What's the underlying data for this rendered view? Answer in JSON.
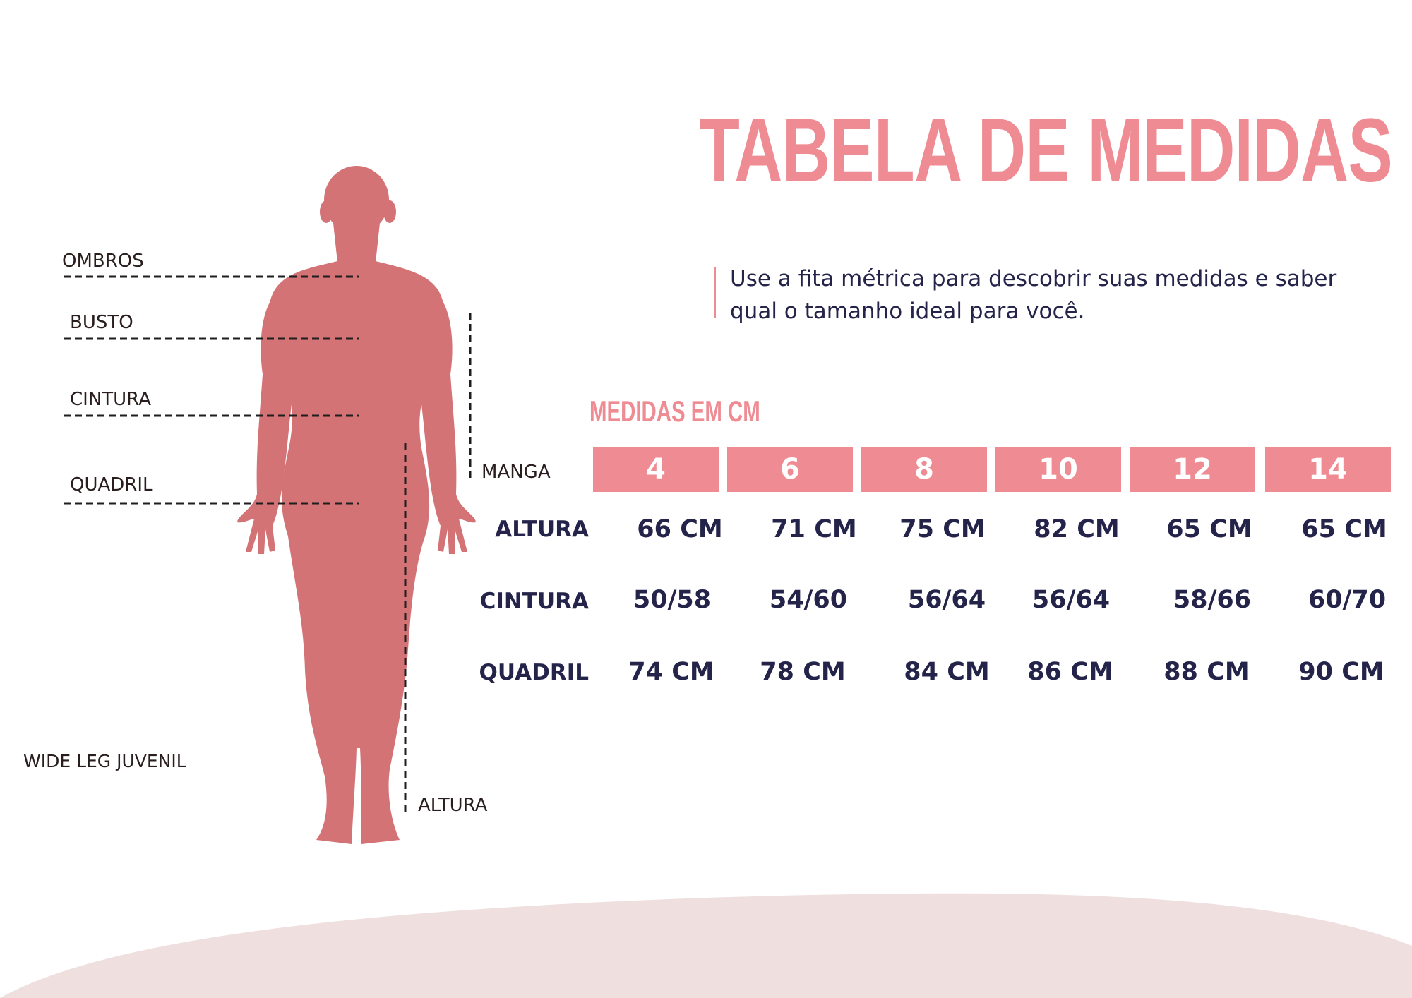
{
  "title": "TABELA DE MEDIDAS",
  "intro": "Use a fita métrica para descobrir suas medidas e saber qual o tamanho ideal para você.",
  "units_label": "MEDIDAS EM CM",
  "figure": {
    "labels": {
      "ombros": "OMBROS",
      "busto": "BUSTO",
      "cintura": "CINTURA",
      "quadril": "QUADRIL",
      "manga": "MANGA",
      "altura": "ALTURA"
    },
    "product": "WIDE LEG JUVENIL"
  },
  "table": {
    "sizes": [
      "4",
      "6",
      "8",
      "10",
      "12",
      "14"
    ],
    "rows": [
      {
        "label": "ALTURA",
        "values": [
          "66 CM",
          "71 CM",
          "75 CM",
          "82 CM",
          "65 CM",
          "65 CM"
        ]
      },
      {
        "label": "CINTURA",
        "values": [
          "50/58",
          "54/60",
          "56/64",
          "56/64",
          "58/66",
          "60/70"
        ]
      },
      {
        "label": "QUADRIL",
        "values": [
          "74 CM",
          "78 CM",
          "84 CM",
          "86 CM",
          "88 CM",
          "90 CM"
        ]
      }
    ]
  },
  "colors": {
    "accent_pink": "#ef8b93",
    "silhouette": "#d47376",
    "text_navy": "#24234a",
    "wave": "#efdfdf"
  }
}
